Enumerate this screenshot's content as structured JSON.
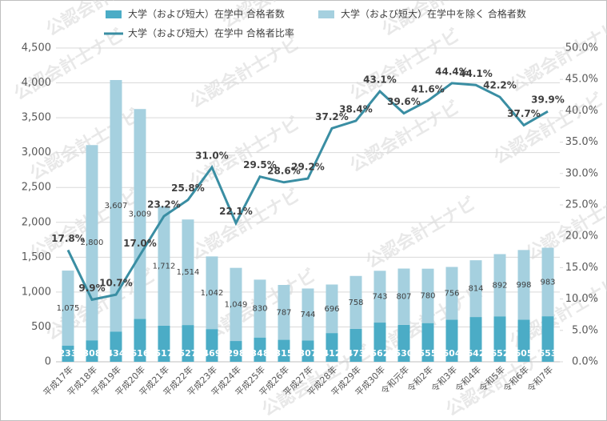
{
  "chart_data": {
    "type": "bar-line",
    "watermark": "公認会計士ナビ",
    "categories": [
      "平成17年",
      "平成18年",
      "平成19年",
      "平成20年",
      "平成21年",
      "平成22年",
      "平成23年",
      "平成24年",
      "平成25年",
      "平成26年",
      "平成27年",
      "平成28年",
      "平成29年",
      "平成30年",
      "令和元年",
      "令和2年",
      "令和3年",
      "令和4年",
      "令和5年",
      "令和6年",
      "令和7年"
    ],
    "series": [
      {
        "name": "大学（および短大）在学中 合格者数",
        "color": "#4bacc6",
        "stack": true,
        "values": [
          233,
          308,
          434,
          616,
          517,
          527,
          469,
          298,
          348,
          315,
          307,
          412,
          473,
          562,
          530,
          555,
          604,
          642,
          652,
          605,
          653
        ]
      },
      {
        "name": "大学（および短大）在学中を除く 合格者数",
        "color": "#a5d0df",
        "stack": true,
        "values": [
          1075,
          2800,
          3607,
          3009,
          1712,
          1514,
          1042,
          1049,
          830,
          787,
          744,
          696,
          758,
          743,
          807,
          780,
          756,
          814,
          892,
          998,
          983
        ],
        "value_labels": [
          "1,075",
          "2,800",
          "3,607",
          "3,009",
          "1,712",
          "1,514",
          "1,042",
          "1,049",
          "830",
          "787",
          "744",
          "696",
          "758",
          "743",
          "807",
          "780",
          "756",
          "814",
          "892",
          "998",
          "983"
        ]
      },
      {
        "name": "大学（および短大）在学中 合格者比率",
        "color": "#3a8ea3",
        "type": "line",
        "axis": "y2",
        "values": [
          17.8,
          9.9,
          10.7,
          17.0,
          23.2,
          25.8,
          31.0,
          22.1,
          29.5,
          28.6,
          29.2,
          37.2,
          38.4,
          43.1,
          39.6,
          41.6,
          44.4,
          44.1,
          42.2,
          37.7,
          39.9
        ],
        "value_labels": [
          "17.8%",
          "9.9%",
          "10.7%",
          "17.0%",
          "23.2%",
          "25.8%",
          "31.0%",
          "22.1%",
          "29.5%",
          "28.6%",
          "29.2%",
          "37.2%",
          "38.4%",
          "43.1%",
          "39.6%",
          "41.6%",
          "44.4%",
          "44.1%",
          "42.2%",
          "37.7%",
          "39.9%"
        ]
      }
    ],
    "ylim": [
      0,
      4500
    ],
    "yticks": [
      0,
      500,
      {
        "value": 1000,
        "label": "1,000"
      },
      {
        "value": 1500,
        "label": "1,500"
      },
      {
        "value": 2000,
        "label": "2,000"
      },
      {
        "value": 2500,
        "label": "2,500"
      },
      {
        "value": 3000,
        "label": "3,000"
      },
      {
        "value": 3500,
        "label": "3,500"
      },
      {
        "value": 4000,
        "label": "4,000"
      },
      {
        "value": 4500,
        "label": "4,500"
      }
    ],
    "y2lim": [
      0,
      50
    ],
    "y2ticks": [
      {
        "value": 0,
        "label": "0.0%"
      },
      {
        "value": 5,
        "label": "5.0%"
      },
      {
        "value": 10,
        "label": "10.0%"
      },
      {
        "value": 15,
        "label": "15.0%"
      },
      {
        "value": 20,
        "label": "20.0%"
      },
      {
        "value": 25,
        "label": "25.0%"
      },
      {
        "value": 30,
        "label": "30.0%"
      },
      {
        "value": 35,
        "label": "35.0%"
      },
      {
        "value": 40,
        "label": "40.0%"
      },
      {
        "value": 45,
        "label": "45.0%"
      },
      {
        "value": 50,
        "label": "50.0%"
      }
    ],
    "grid": true
  }
}
